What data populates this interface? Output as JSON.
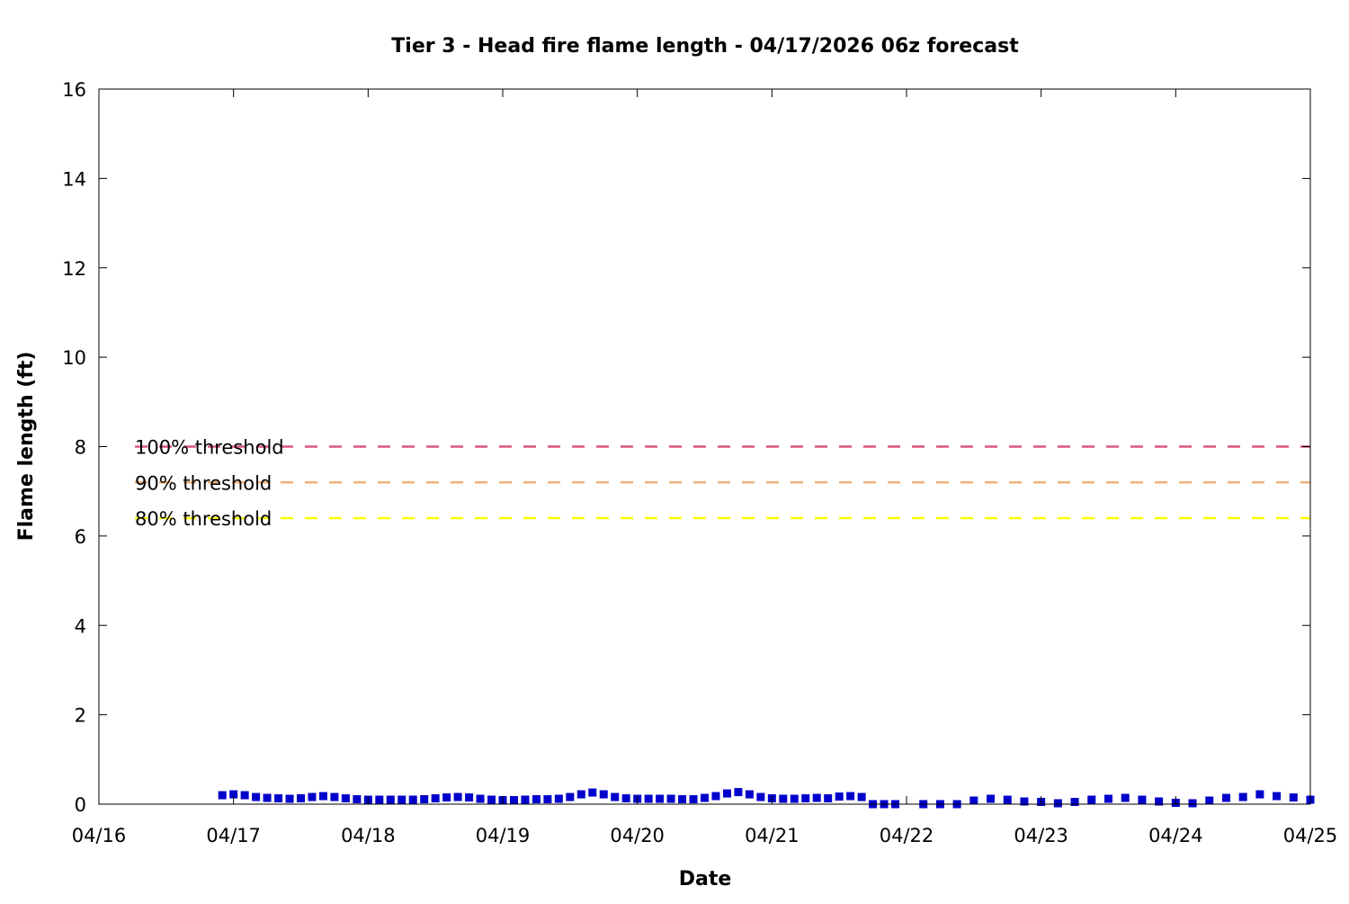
{
  "chart_data": {
    "type": "scatter",
    "title": "Tier 3 - Head fire flame length - 04/17/2026 06z forecast",
    "xlabel": "Date",
    "ylabel": "Flame length (ft)",
    "x_unit": "days",
    "xlim": [
      "04/16",
      "04/25"
    ],
    "ylim": [
      0,
      16
    ],
    "x_tick_labels": [
      "04/16",
      "04/17",
      "04/18",
      "04/19",
      "04/20",
      "04/21",
      "04/22",
      "04/23",
      "04/24",
      "04/25"
    ],
    "y_ticks": [
      0,
      2,
      4,
      6,
      8,
      10,
      12,
      14,
      16
    ],
    "grid": false,
    "thresholds": [
      {
        "name": "100% threshold",
        "value": 8.0,
        "color": "#d9577a"
      },
      {
        "name": "90% threshold",
        "value": 7.2,
        "color": "#f0b278"
      },
      {
        "name": "80% threshold",
        "value": 6.4,
        "color": "#ffff00"
      }
    ],
    "series": [
      {
        "color": "#0000cc",
        "marker": "square",
        "x": [
          "04/16 22:00",
          "04/17 00:00",
          "04/17 02:00",
          "04/17 04:00",
          "04/17 06:00",
          "04/17 08:00",
          "04/17 10:00",
          "04/17 12:00",
          "04/17 14:00",
          "04/17 16:00",
          "04/17 18:00",
          "04/17 20:00",
          "04/17 22:00",
          "04/18 00:00",
          "04/18 02:00",
          "04/18 04:00",
          "04/18 06:00",
          "04/18 08:00",
          "04/18 10:00",
          "04/18 12:00",
          "04/18 14:00",
          "04/18 16:00",
          "04/18 18:00",
          "04/18 20:00",
          "04/18 22:00",
          "04/19 00:00",
          "04/19 02:00",
          "04/19 04:00",
          "04/19 06:00",
          "04/19 08:00",
          "04/19 10:00",
          "04/19 12:00",
          "04/19 14:00",
          "04/19 16:00",
          "04/19 18:00",
          "04/19 20:00",
          "04/19 22:00",
          "04/20 00:00",
          "04/20 02:00",
          "04/20 04:00",
          "04/20 06:00",
          "04/20 08:00",
          "04/20 10:00",
          "04/20 12:00",
          "04/20 14:00",
          "04/20 16:00",
          "04/20 18:00",
          "04/20 20:00",
          "04/20 22:00",
          "04/21 00:00",
          "04/21 02:00",
          "04/21 04:00",
          "04/21 06:00",
          "04/21 08:00",
          "04/21 10:00",
          "04/21 12:00",
          "04/21 14:00",
          "04/21 16:00",
          "04/21 18:00",
          "04/21 20:00",
          "04/21 22:00",
          "04/22 03:00",
          "04/22 06:00",
          "04/22 09:00",
          "04/22 12:00",
          "04/22 15:00",
          "04/22 18:00",
          "04/22 21:00",
          "04/23 00:00",
          "04/23 03:00",
          "04/23 06:00",
          "04/23 09:00",
          "04/23 12:00",
          "04/23 15:00",
          "04/23 18:00",
          "04/23 21:00",
          "04/24 00:00",
          "04/24 03:00",
          "04/24 06:00",
          "04/24 09:00",
          "04/24 12:00",
          "04/24 15:00",
          "04/24 18:00",
          "04/24 21:00",
          "04/25 00:00"
        ],
        "values": [
          0.2,
          0.22,
          0.2,
          0.16,
          0.14,
          0.13,
          0.12,
          0.13,
          0.16,
          0.18,
          0.16,
          0.13,
          0.11,
          0.1,
          0.1,
          0.1,
          0.1,
          0.1,
          0.11,
          0.13,
          0.15,
          0.16,
          0.15,
          0.12,
          0.1,
          0.09,
          0.09,
          0.1,
          0.11,
          0.11,
          0.12,
          0.16,
          0.22,
          0.26,
          0.22,
          0.16,
          0.13,
          0.12,
          0.12,
          0.12,
          0.12,
          0.11,
          0.11,
          0.14,
          0.18,
          0.24,
          0.27,
          0.22,
          0.16,
          0.13,
          0.12,
          0.12,
          0.13,
          0.14,
          0.13,
          0.17,
          0.18,
          0.16,
          0.0,
          0.0,
          0.0,
          0.0,
          0.0,
          0.0,
          0.08,
          0.12,
          0.1,
          0.06,
          0.05,
          0.02,
          0.05,
          0.1,
          0.12,
          0.14,
          0.1,
          0.06,
          0.03,
          0.02,
          0.08,
          0.14,
          0.16,
          0.22,
          0.18,
          0.15,
          0.1
        ]
      }
    ]
  }
}
